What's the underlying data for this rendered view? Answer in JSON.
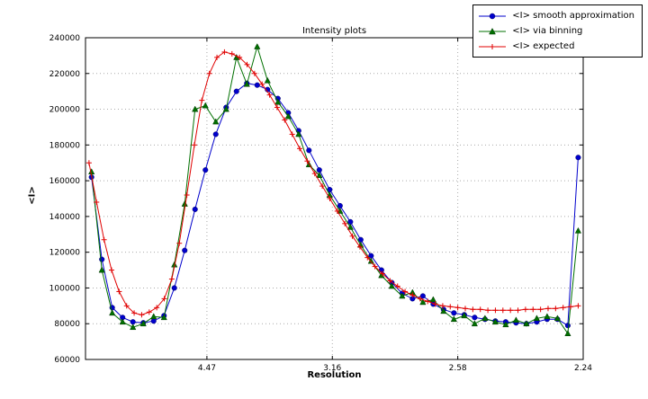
{
  "chart_data": {
    "type": "line",
    "title": "Intensity plots",
    "x_axis": {
      "label": "Resolution",
      "scale": "linear in 1/d^2, resolution (Angstrom) decreasing left to right",
      "range_invd2": [
        0.0016,
        0.2
      ],
      "ticks": [
        {
          "invd2": 0.05,
          "label": "4.47"
        },
        {
          "invd2": 0.1,
          "label": "3.16"
        },
        {
          "invd2": 0.15,
          "label": "2.58"
        },
        {
          "invd2": 0.2,
          "label": "2.24"
        }
      ]
    },
    "y_axis": {
      "label": "<I>",
      "min": 60000,
      "max": 240000,
      "tick_step": 20000
    },
    "grid": {
      "visible": true,
      "style": "dotted",
      "color": "#aaaaaa"
    },
    "legend": {
      "position": "upper-right",
      "border_color": "#000000",
      "background": "#ffffff"
    },
    "series": [
      {
        "name": "<I> smooth approximation",
        "color": "#0000cc",
        "edge_color": "#000066",
        "marker": "circle",
        "x_invd2_start": 0.004,
        "x_invd2_end": 0.198,
        "values": [
          162000,
          116000,
          89000,
          83500,
          81000,
          80500,
          81500,
          84500,
          100000,
          121000,
          144000,
          166000,
          186000,
          201000,
          210000,
          214500,
          213500,
          211000,
          206000,
          198000,
          188000,
          177000,
          166000,
          155000,
          146000,
          137000,
          127000,
          118000,
          110000,
          103000,
          97000,
          94000,
          95500,
          91000,
          88000,
          86000,
          85000,
          83500,
          82500,
          81500,
          81000,
          80500,
          80000,
          81000,
          82500,
          82500,
          79000,
          173000
        ]
      },
      {
        "name": "<I> via binning",
        "color": "#007000",
        "edge_color": "#003300",
        "marker": "triangle",
        "x_invd2_start": 0.004,
        "x_invd2_end": 0.198,
        "values": [
          165000,
          110000,
          86000,
          81000,
          78000,
          80000,
          84000,
          83500,
          113000,
          147000,
          200000,
          202000,
          193000,
          200000,
          229000,
          214000,
          235000,
          216000,
          204000,
          196000,
          186000,
          169000,
          163000,
          152000,
          143000,
          134000,
          124000,
          115000,
          107000,
          101000,
          95500,
          97500,
          92000,
          93500,
          87000,
          82500,
          84500,
          80000,
          83000,
          81000,
          79500,
          82000,
          80000,
          83000,
          84000,
          83000,
          74500,
          132000
        ]
      },
      {
        "name": "<I> expected",
        "color": "#e00000",
        "edge_color": "#e00000",
        "marker": "plus",
        "x_invd2_start": 0.003,
        "x_invd2_end": 0.198,
        "values": [
          170000,
          148000,
          127000,
          110000,
          98000,
          90000,
          86000,
          85000,
          86500,
          89000,
          94000,
          105000,
          125000,
          152000,
          180000,
          205000,
          220000,
          229000,
          232000,
          231000,
          229000,
          225000,
          220000,
          214000,
          208000,
          201000,
          194000,
          186000,
          178000,
          171000,
          164000,
          157000,
          150000,
          143000,
          136000,
          129000,
          123000,
          117000,
          112000,
          108000,
          104000,
          101000,
          98000,
          96000,
          94000,
          92500,
          91000,
          90000,
          89500,
          89000,
          88500,
          88000,
          88000,
          87500,
          87500,
          87500,
          87500,
          87500,
          88000,
          88000,
          88000,
          88500,
          88500,
          89000,
          89500,
          90000
        ]
      }
    ]
  }
}
